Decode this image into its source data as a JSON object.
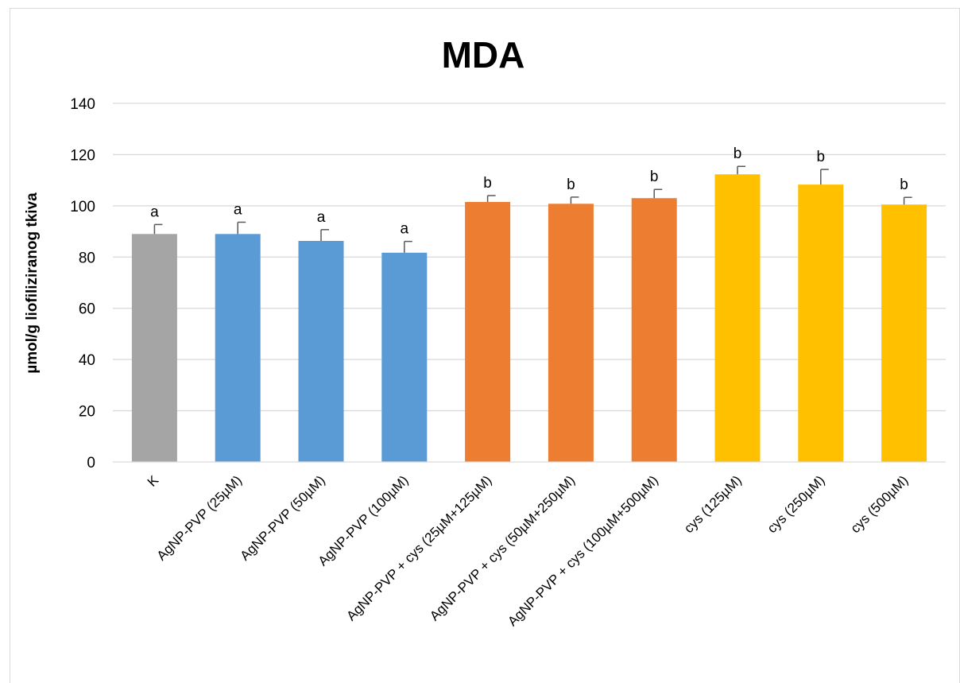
{
  "chart_data": {
    "type": "bar",
    "title": "MDA",
    "xlabel": "",
    "ylabel": "µmol/g liofiliziranog tkiva",
    "ylim": [
      0,
      140
    ],
    "yticks": [
      0,
      20,
      40,
      60,
      80,
      100,
      120,
      140
    ],
    "grid": true,
    "legend": "none",
    "categories": [
      "K",
      "AgNP-PVP (25µM)",
      "AgNP-PVP (50µM)",
      "AgNP-PVP (100µM)",
      "AgNP-PVP + cys (25µM+125µM)",
      "AgNP-PVP + cys (50µM+250µM)",
      "AgNP-PVP + cys (100µM+500µM)",
      "cys (125µM)",
      "cys (250µM)",
      "cys (500µM)"
    ],
    "values": [
      89,
      89,
      86.3,
      81.7,
      101.5,
      100.8,
      103,
      112.3,
      108.3,
      100.5
    ],
    "errors": [
      3.7,
      4.6,
      4.4,
      4.4,
      2.5,
      2.6,
      3.4,
      3.1,
      5.9,
      2.8
    ],
    "significance": [
      "a",
      "a",
      "a",
      "a",
      "b",
      "b",
      "b",
      "b",
      "b",
      "b"
    ],
    "bar_colors": [
      "#a5a5a5",
      "#5b9bd5",
      "#5b9bd5",
      "#5b9bd5",
      "#ed7d31",
      "#ed7d31",
      "#ed7d31",
      "#ffc000",
      "#ffc000",
      "#ffc000"
    ],
    "gridline_color": "#d9d9d9",
    "errorbar_color": "#595959"
  }
}
